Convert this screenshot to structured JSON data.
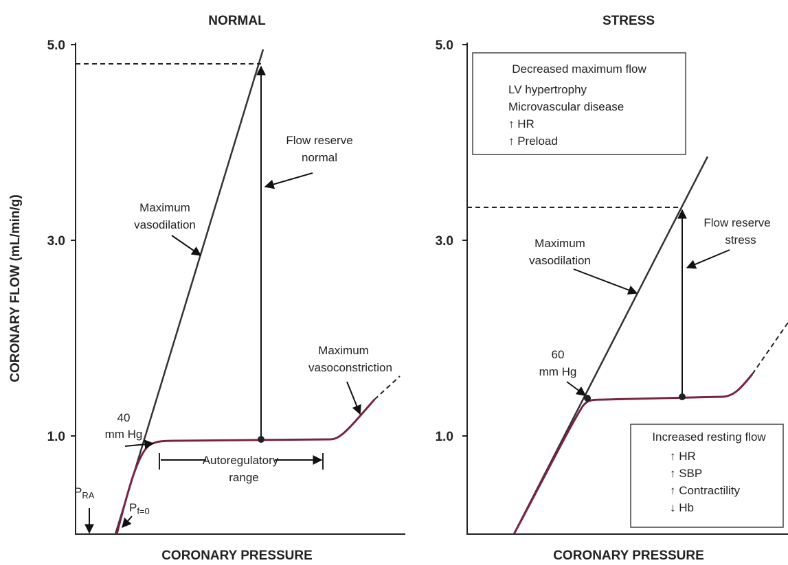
{
  "panels": [
    {
      "title": "NORMAL",
      "y_axis_label": "CORONARY FLOW (mL/min/g)",
      "x_axis_label": "CORONARY PRESSURE",
      "y_tick_labels": [
        "5.0",
        "3.0",
        "1.0"
      ],
      "flow_reserve": [
        "Flow reserve",
        "normal"
      ],
      "max_vasodilation": [
        "Maximum",
        "vasodilation"
      ],
      "pressure_point": [
        "40",
        "mm Hg"
      ],
      "max_vasoconstriction": [
        "Maximum",
        "vasoconstriction"
      ],
      "autoregulatory": [
        "Autoregulatory",
        "range"
      ],
      "pra": {
        "main": "P",
        "sub": "RA"
      },
      "pf": {
        "main": "P",
        "sub": "f=0"
      }
    },
    {
      "title": "STRESS",
      "x_axis_label": "CORONARY PRESSURE",
      "y_tick_labels": [
        "5.0",
        "3.0",
        "1.0"
      ],
      "flow_reserve": [
        "Flow reserve",
        "stress"
      ],
      "max_vasodilation": [
        "Maximum",
        "vasodilation"
      ],
      "pressure_point": [
        "60",
        "mm Hg"
      ],
      "box_top": {
        "heading": "Decreased maximum flow",
        "items": [
          "LV hypertrophy",
          "Microvascular disease",
          "↑ HR",
          "↑ Preload"
        ]
      },
      "box_bottom": {
        "heading": "Increased resting flow",
        "items": [
          "↑ HR",
          "↑ SBP",
          "↑ Contractility",
          "↓ Hb"
        ]
      }
    }
  ]
}
